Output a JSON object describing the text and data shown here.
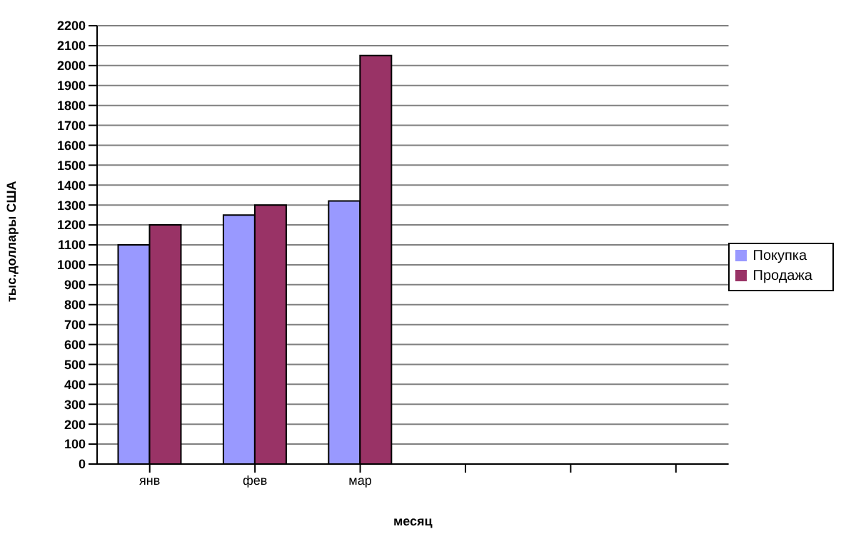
{
  "chart_data": {
    "type": "bar",
    "xlabel": "месяц",
    "ylabel": "тыс.доллары США",
    "categories": [
      "янв",
      "фев",
      "мар",
      null,
      null,
      null
    ],
    "series": [
      {
        "name": "Покупка",
        "color": "#9999ff",
        "values": [
          1100,
          1250,
          1320,
          null,
          null,
          null
        ]
      },
      {
        "name": "Продажа",
        "color": "#993366",
        "values": [
          1200,
          1300,
          2050,
          null,
          null,
          null
        ]
      }
    ],
    "ylim": [
      0,
      2200
    ],
    "yticks": [
      0,
      100,
      200,
      300,
      400,
      500,
      600,
      700,
      800,
      900,
      1000,
      1100,
      1200,
      1300,
      1400,
      1500,
      1600,
      1700,
      1800,
      1900,
      2000,
      2100,
      2200
    ],
    "grid": "y",
    "legend": "right"
  }
}
